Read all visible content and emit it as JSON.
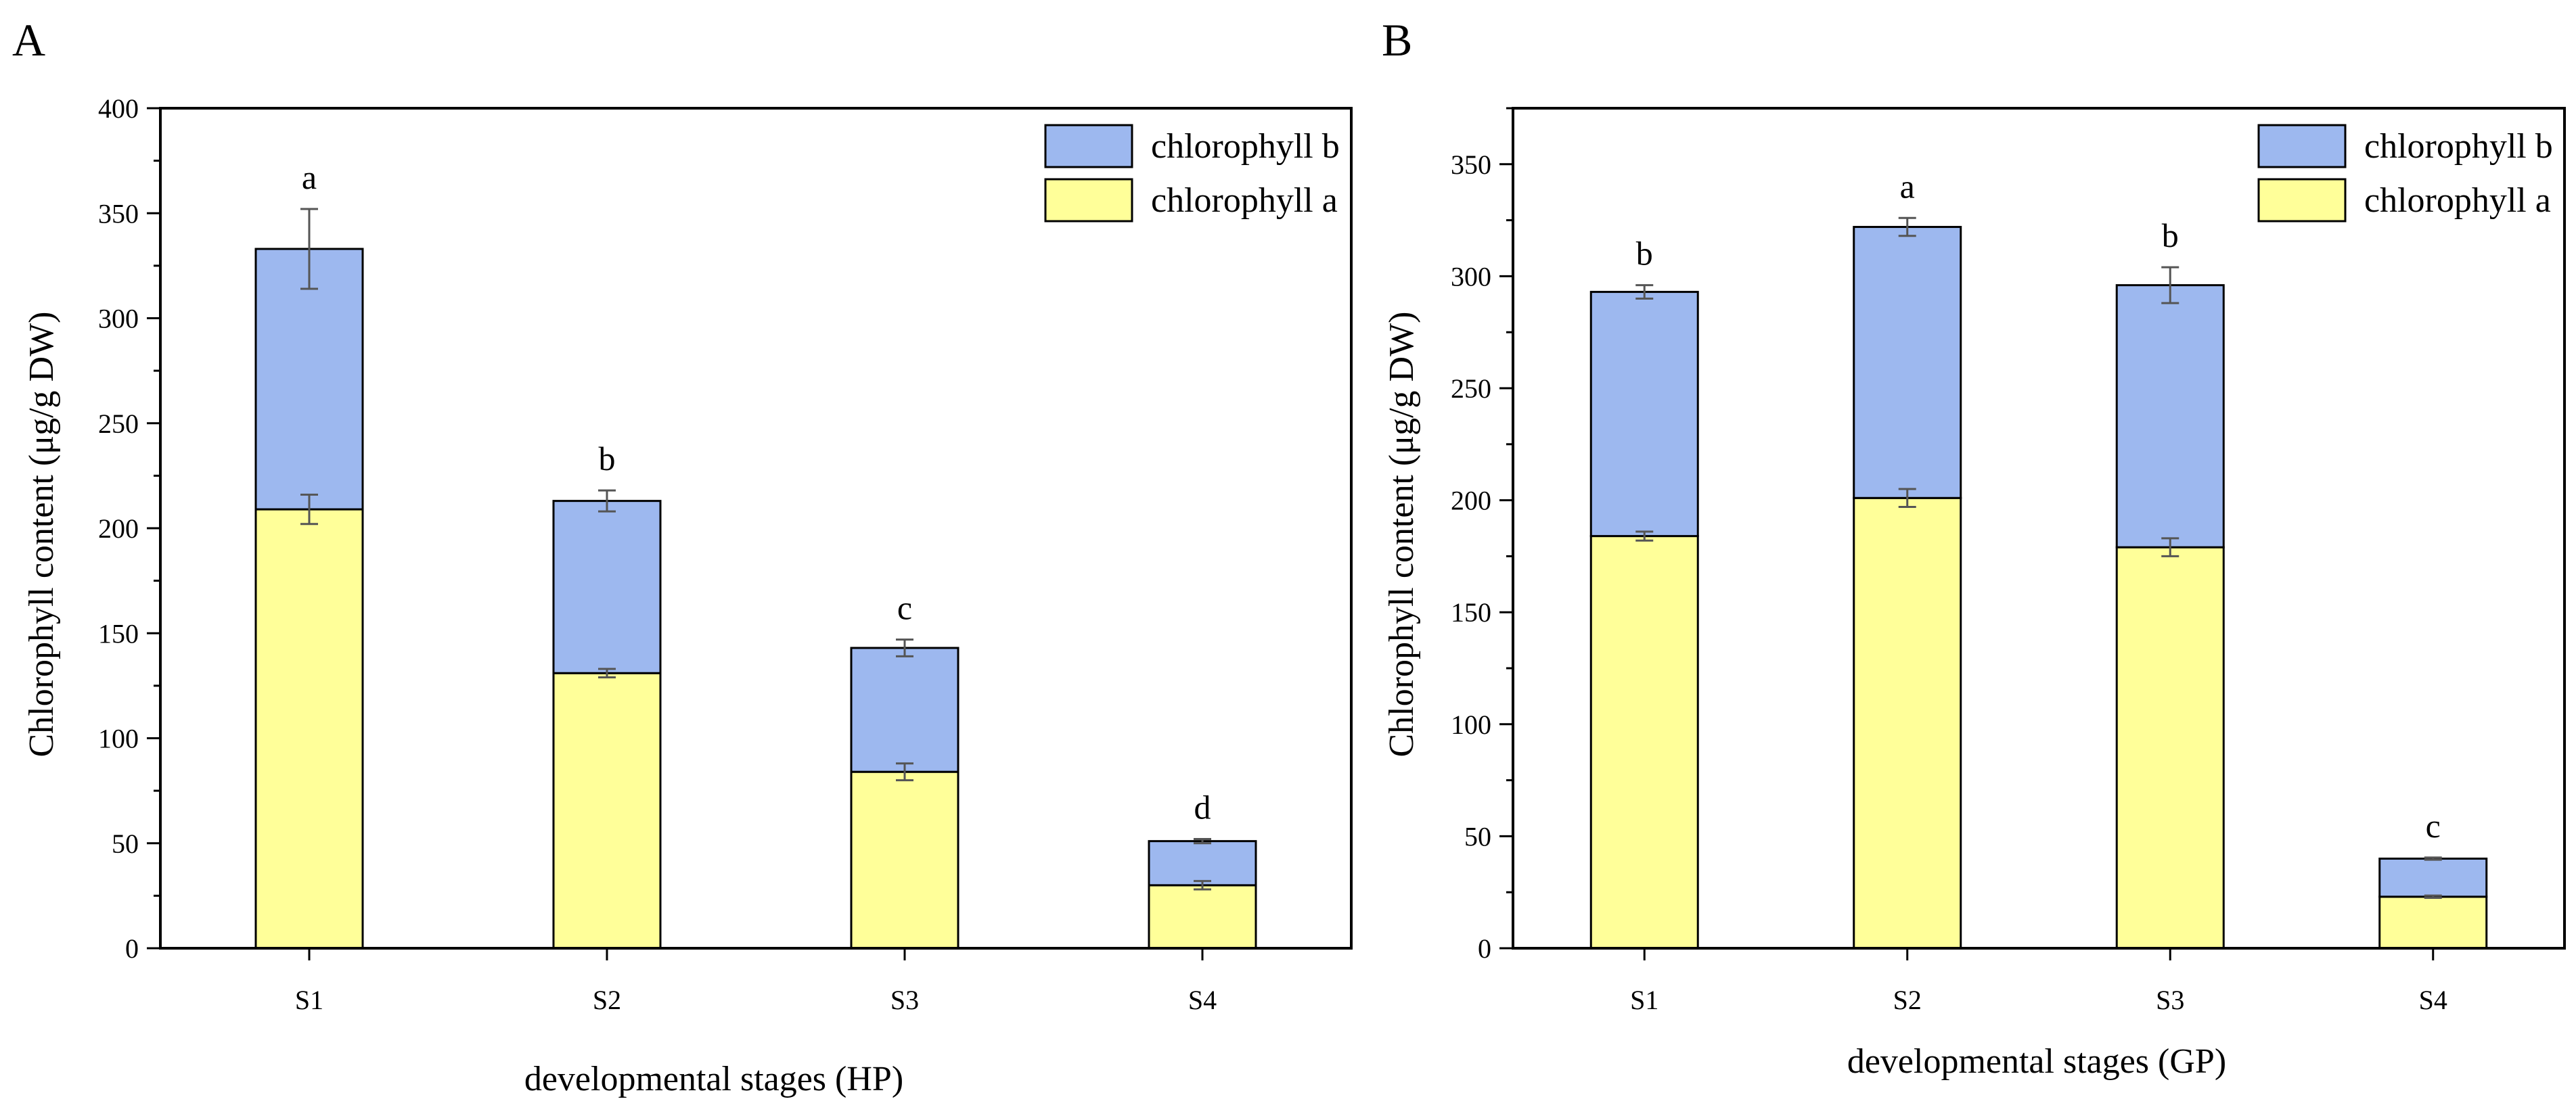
{
  "chart_data": [
    {
      "type": "bar",
      "stacked": true,
      "panel_label": "A",
      "title": "",
      "xlabel": "developmental stages (HP)",
      "ylabel": "Chlorophyll content (μg/g DW)",
      "categories": [
        "S1",
        "S2",
        "S3",
        "S4"
      ],
      "ylim": [
        0,
        400
      ],
      "yticks": [
        0,
        50,
        100,
        150,
        200,
        250,
        300,
        350,
        400
      ],
      "series": [
        {
          "name": "chlorophyll a",
          "values": [
            209,
            131,
            84,
            30
          ],
          "errors": [
            7,
            2,
            4,
            2
          ],
          "color": "#ffff99"
        },
        {
          "name": "chlorophyll b",
          "values": [
            124,
            82,
            59,
            21
          ],
          "errors": [
            19,
            5,
            4,
            1
          ],
          "color": "#9db8ef"
        }
      ],
      "significance": [
        "a",
        "b",
        "c",
        "d"
      ],
      "legend": {
        "position": "top-right",
        "entries": [
          "chlorophyll b",
          "chlorophyll a"
        ]
      }
    },
    {
      "type": "bar",
      "stacked": true,
      "panel_label": "B",
      "title": "",
      "xlabel": "developmental stages (GP)",
      "ylabel": "Chlorophyll content (μg/g DW)",
      "categories": [
        "S1",
        "S2",
        "S3",
        "S4"
      ],
      "ylim": [
        0,
        375
      ],
      "yticks": [
        0,
        50,
        100,
        150,
        200,
        250,
        300,
        350
      ],
      "series": [
        {
          "name": "chlorophyll a",
          "values": [
            184,
            201,
            179,
            23
          ],
          "errors": [
            2,
            4,
            4,
            0.5
          ],
          "color": "#ffff99"
        },
        {
          "name": "chlorophyll b",
          "values": [
            109,
            121,
            117,
            17
          ],
          "errors": [
            3,
            4,
            8,
            0.5
          ],
          "color": "#9db8ef"
        }
      ],
      "significance": [
        "b",
        "a",
        "b",
        "c"
      ],
      "legend": {
        "position": "top-right",
        "entries": [
          "chlorophyll b",
          "chlorophyll a"
        ]
      }
    }
  ]
}
